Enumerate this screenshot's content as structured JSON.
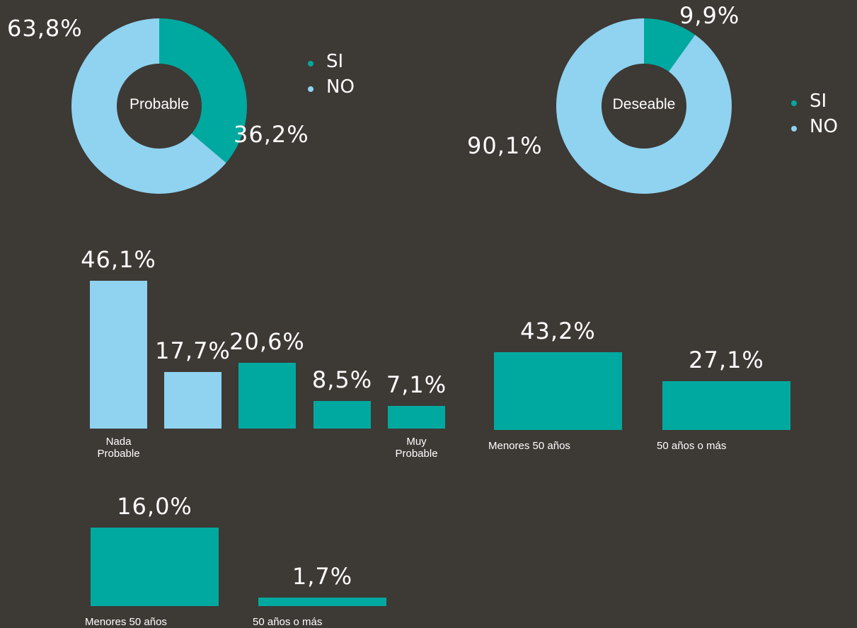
{
  "chart_data": [
    {
      "type": "donut",
      "title": "Probable",
      "categories": [
        "SI",
        "NO"
      ],
      "values": [
        36.2,
        63.8
      ],
      "value_labels": [
        "36,2%",
        "63,8%"
      ],
      "colors": [
        "#00a99f",
        "#8fd3f0"
      ]
    },
    {
      "type": "donut",
      "title": "Deseable",
      "categories": [
        "SI",
        "NO"
      ],
      "values": [
        9.9,
        90.1
      ],
      "value_labels": [
        "9,9%",
        "90,1%"
      ],
      "colors": [
        "#00a99f",
        "#8fd3f0"
      ]
    },
    {
      "type": "bar",
      "categories": [
        "Nada Probable",
        null,
        null,
        null,
        "Muy Probable"
      ],
      "values": [
        46.1,
        17.7,
        20.6,
        8.5,
        7.1
      ],
      "value_labels": [
        "46,1%",
        "17,7%",
        "20,6%",
        "8,5%",
        "7,1%"
      ],
      "colors": [
        "#8fd3f0",
        "#8fd3f0",
        "#00a99f",
        "#00a99f",
        "#00a99f"
      ]
    },
    {
      "type": "bar",
      "categories": [
        "Menores 50 años",
        "50 años o más"
      ],
      "values": [
        43.2,
        27.1
      ],
      "value_labels": [
        "43,2%",
        "27,1%"
      ],
      "colors": [
        "#00a99f",
        "#00a99f"
      ]
    },
    {
      "type": "bar",
      "categories": [
        "Menores 50 años",
        "50 años o más"
      ],
      "values": [
        16.0,
        1.7
      ],
      "value_labels": [
        "16,0%",
        "1,7%"
      ],
      "colors": [
        "#00a99f",
        "#00a99f"
      ]
    }
  ]
}
